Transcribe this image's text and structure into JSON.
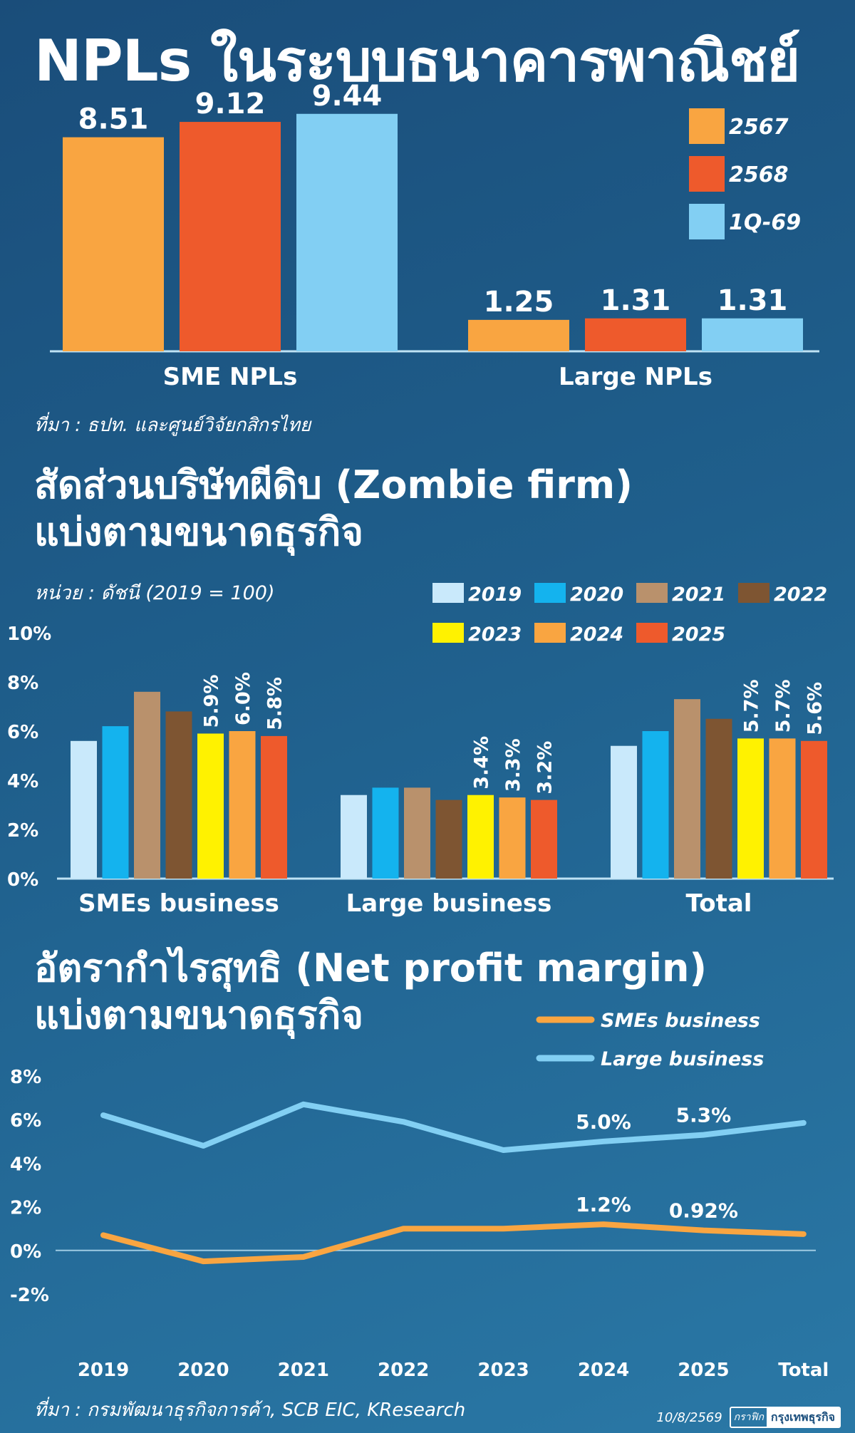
{
  "titles": {
    "main": "NPLs ในระบบธนาคารพาณิชย์",
    "zombie_line1": "สัดส่วนบริษัทผีดิบ (Zombie firm)",
    "zombie_line2": "แบ่งตามขนาดธุรกิจ",
    "npm_line1": "อัตรากำไรสุทธิ (Net profit margin)",
    "npm_line2": "แบ่งตามขนาดธุรกิจ"
  },
  "source1": "ที่มา : ธปท. และศูนย์วิจัยกสิกรไทย",
  "unit": "หน่วย : ดัชนี (2019 = 100)",
  "source2": "ที่มา : กรมพัฒนาธุรกิจการค้า, SCB EIC, KResearch",
  "date": "10/8/2569",
  "brand_small": "กราฟิก",
  "brand_name": "กรุงเทพธุรกิจ",
  "chart_data": [
    {
      "type": "bar",
      "categories": [
        "SME NPLs",
        "Large NPLs"
      ],
      "series": [
        {
          "name": "2567",
          "values": [
            8.51,
            1.25
          ],
          "color": "#f9a541"
        },
        {
          "name": "2568",
          "values": [
            9.12,
            1.31
          ],
          "color": "#ee5a2c"
        },
        {
          "name": "1Q-69",
          "values": [
            9.44,
            1.31
          ],
          "color": "#82cff3"
        }
      ],
      "value_labels": [
        [
          "8.51",
          "1.25"
        ],
        [
          "9.12",
          "1.31"
        ],
        [
          "9.44",
          "1.31"
        ]
      ],
      "legend": "top-right",
      "ylim": [
        0,
        10
      ]
    },
    {
      "type": "bar",
      "categories": [
        "SMEs business",
        "Large business",
        "Total"
      ],
      "series": [
        {
          "name": "2019",
          "values": [
            5.6,
            3.4,
            5.4
          ],
          "color": "#c9e9fb"
        },
        {
          "name": "2020",
          "values": [
            6.2,
            3.7,
            6.0
          ],
          "color": "#14b3ee"
        },
        {
          "name": "2021",
          "values": [
            7.6,
            3.7,
            7.3
          ],
          "color": "#b9916c"
        },
        {
          "name": "2022",
          "values": [
            6.8,
            3.2,
            6.5
          ],
          "color": "#7e5532"
        },
        {
          "name": "2023",
          "values": [
            5.9,
            3.4,
            5.7
          ],
          "color": "#fff200"
        },
        {
          "name": "2024",
          "values": [
            6.0,
            3.3,
            5.7
          ],
          "color": "#f9a541"
        },
        {
          "name": "2025",
          "values": [
            5.8,
            3.2,
            5.6
          ],
          "color": "#ee5a2c"
        }
      ],
      "value_labels": [
        [
          "",
          "",
          ""
        ],
        [
          "",
          "",
          ""
        ],
        [
          "",
          "",
          ""
        ],
        [
          "",
          "",
          ""
        ],
        [
          "5.9%",
          "3.4%",
          "5.7%"
        ],
        [
          "6.0%",
          "3.3%",
          "5.7%"
        ],
        [
          "5.8%",
          "3.2%",
          "5.6%"
        ]
      ],
      "yticks": [
        "0%",
        "2%",
        "4%",
        "6%",
        "8%",
        "10%"
      ],
      "ylim": [
        0,
        10
      ],
      "grid": false,
      "legend": "top-right"
    },
    {
      "type": "line",
      "categories": [
        "2019",
        "2020",
        "2021",
        "2022",
        "2023",
        "2024",
        "2025",
        "Total"
      ],
      "series": [
        {
          "name": "SMEs business",
          "values": [
            0.7,
            -0.5,
            -0.3,
            1.0,
            1.0,
            1.2,
            0.92,
            0.75
          ],
          "color": "#f9a541",
          "point_labels": [
            "",
            "",
            "",
            "",
            "",
            "1.2%",
            "0.92%",
            ""
          ]
        },
        {
          "name": "Large business",
          "values": [
            6.2,
            4.8,
            6.7,
            5.9,
            4.6,
            5.0,
            5.3,
            5.85
          ],
          "color": "#82cff3",
          "point_labels": [
            "",
            "",
            "",
            "",
            "",
            "5.0%",
            "5.3%",
            ""
          ]
        }
      ],
      "yticks": [
        "-2%",
        "0%",
        "2%",
        "4%",
        "6%",
        "8%"
      ],
      "ylim": [
        -2,
        8
      ],
      "grid": false,
      "legend": "top-right"
    }
  ]
}
